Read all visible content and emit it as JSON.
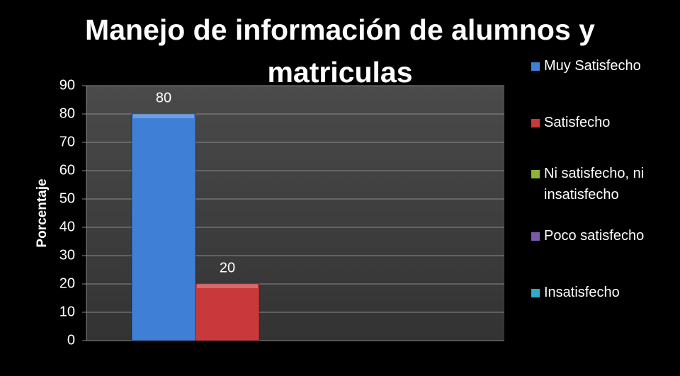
{
  "chart_data": {
    "type": "bar",
    "title": "Manejo de información de alumnos y matriculas",
    "y_label": "Porcentaje",
    "categories": [
      null
    ],
    "series": [
      {
        "name": "Muy Satisfecho",
        "color": "#3f7fd6",
        "values": [
          80
        ]
      },
      {
        "name": "Satisfecho",
        "color": "#c9383a",
        "values": [
          20
        ]
      },
      {
        "name": "Ni satisfecho, ni insatisfecho",
        "color": "#8db33a",
        "values": [
          null
        ]
      },
      {
        "name": "Poco satisfecho",
        "color": "#7a5aa8",
        "values": [
          null
        ]
      },
      {
        "name": "Insatisfecho",
        "color": "#33aac6",
        "values": [
          null
        ]
      }
    ],
    "ylim": [
      0,
      90
    ],
    "yticks": [
      0,
      10,
      20,
      30,
      40,
      50,
      60,
      70,
      80,
      90
    ],
    "grid": true,
    "legend": "right",
    "data_labels": true
  }
}
